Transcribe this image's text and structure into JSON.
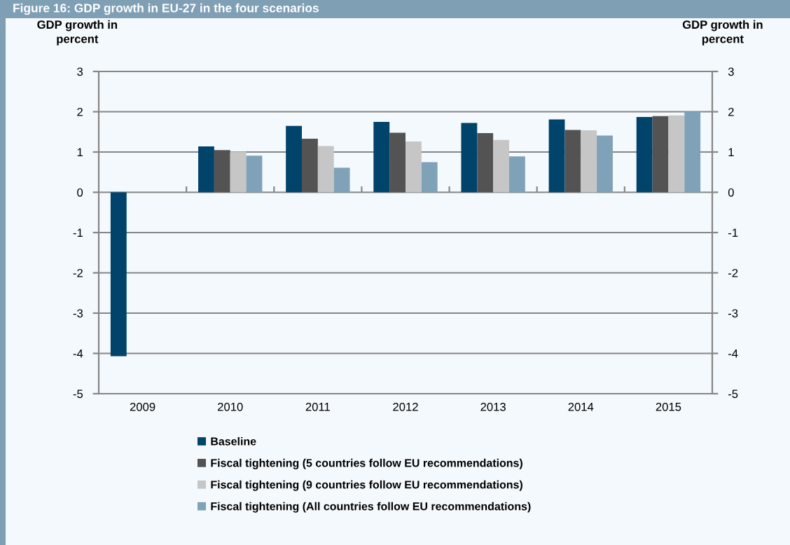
{
  "chart_data": {
    "type": "bar",
    "title": "Figure 16: GDP growth in EU-27 in the four scenarios",
    "ylabel": "GDP growth in\npercent",
    "y2label": "GDP growth in\npercent",
    "categories": [
      "2009",
      "2010",
      "2011",
      "2012",
      "2013",
      "2014",
      "2015"
    ],
    "series": [
      {
        "name": "Baseline",
        "color": "#00436b",
        "values": [
          -4.07,
          1.14,
          1.65,
          1.75,
          1.72,
          1.81,
          1.87
        ]
      },
      {
        "name": "Fiscal tightening (5 countries follow EU recommendations)",
        "color": "#535353",
        "values": [
          null,
          1.05,
          1.33,
          1.48,
          1.47,
          1.55,
          1.89
        ]
      },
      {
        "name": "Fiscal tightening (9 countries follow EU recommendations)",
        "color": "#c6c6c6",
        "values": [
          null,
          1.01,
          1.15,
          1.26,
          1.3,
          1.54,
          1.91
        ]
      },
      {
        "name": "Fiscal tightening (All countries follow EU recommendations)",
        "color": "#7fa2b8",
        "values": [
          null,
          0.91,
          0.61,
          0.75,
          0.89,
          1.41,
          2.0
        ]
      }
    ],
    "ylim": [
      -5,
      3
    ],
    "yticks": [
      -5,
      -4,
      -3,
      -2,
      -1,
      0,
      1,
      2,
      3
    ],
    "y2lim": [
      -5,
      3
    ],
    "y2ticks": [
      -5,
      -4,
      -3,
      -2,
      -1,
      0,
      1,
      2,
      3
    ],
    "grid": "y",
    "legend": "bottom"
  }
}
